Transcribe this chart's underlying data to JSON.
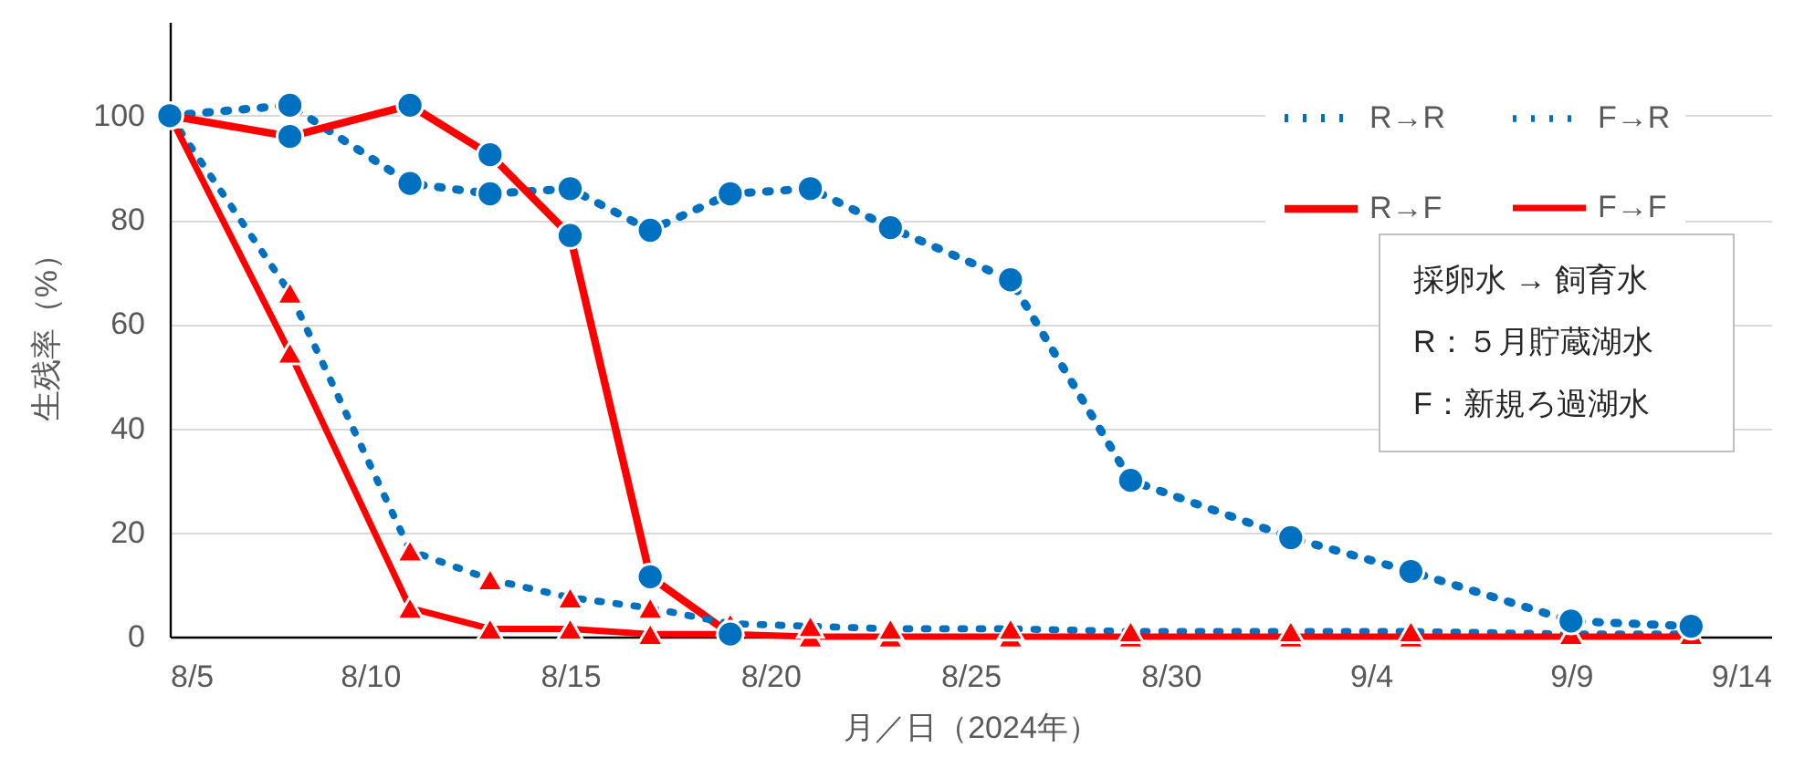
{
  "chart_data": {
    "type": "line",
    "xlabel": "月／日（2024年）",
    "ylabel": "生残率（%）",
    "xlim": [
      "2024-08-05",
      "2024-09-14"
    ],
    "xticks": [
      {
        "value": "2024-08-05",
        "label": "8/5"
      },
      {
        "value": "2024-08-10",
        "label": "8/10"
      },
      {
        "value": "2024-08-15",
        "label": "8/15"
      },
      {
        "value": "2024-08-20",
        "label": "8/20"
      },
      {
        "value": "2024-08-25",
        "label": "8/25"
      },
      {
        "value": "2024-08-30",
        "label": "8/30"
      },
      {
        "value": "2024-09-04",
        "label": "9/4"
      },
      {
        "value": "2024-09-09",
        "label": "9/9"
      },
      {
        "value": "2024-09-14",
        "label": "9/14"
      }
    ],
    "ylim": [
      0,
      118
    ],
    "yticks": [
      0,
      20,
      40,
      60,
      80,
      100
    ],
    "grid": "y",
    "legend": "top right",
    "annotations": [
      "採卵水 → 飼育水",
      "R：５月貯蔵湖水",
      "F：新規ろ過湖水"
    ],
    "x": [
      "2024-08-05",
      "2024-08-08",
      "2024-08-11",
      "2024-08-13",
      "2024-08-15",
      "2024-08-17",
      "2024-08-19",
      "2024-08-21",
      "2024-08-23",
      "2024-08-26",
      "2024-08-29",
      "2024-09-02",
      "2024-09-05",
      "2024-09-09",
      "2024-09-12"
    ],
    "series": [
      {
        "name": "R→R",
        "color": "#0070c0",
        "marker": "circle",
        "line_style": "dotted",
        "values": [
          100,
          102,
          87,
          85,
          86,
          78,
          85,
          86,
          78.5,
          68.5,
          30,
          19,
          12.5,
          3,
          2
        ],
        "colors": [
          "#0070c0",
          "#0070c0",
          "#0070c0",
          "#0070c0",
          "#0070c0",
          "#0070c0",
          "#0070c0",
          "#0070c0",
          "#0070c0",
          "#0070c0",
          "#0070c0",
          "#0070c0",
          "#0070c0",
          "#0070c0",
          "#0070c0"
        ]
      },
      {
        "name": "R→F",
        "color": "#ff0000",
        "marker": "circle",
        "line_style": "solid",
        "x": [
          "2024-08-05",
          "2024-08-08",
          "2024-08-11",
          "2024-08-13",
          "2024-08-15",
          "2024-08-17",
          "2024-08-19"
        ],
        "values": [
          100,
          96,
          102,
          92.5,
          77,
          11.5,
          0.5
        ],
        "colors": [
          "#0070c0",
          "#0070c0",
          "#0070c0",
          "#0070c0",
          "#0070c0",
          "#0070c0",
          "#0070c0"
        ]
      },
      {
        "name": "F→R",
        "color": "#0070c0",
        "marker": "triangle",
        "line_style": "dotted",
        "values": [
          100,
          66,
          16.5,
          11,
          7.5,
          5.5,
          2.5,
          2,
          1.5,
          1.5,
          1,
          1,
          1,
          0.5,
          0.5
        ],
        "colors": [
          "#ff0000",
          "#ff0000",
          "#ff0000",
          "#ff0000",
          "#ff0000",
          "#ff0000",
          "#ff0000",
          "#ff0000",
          "#ff0000",
          "#ff0000",
          "#ff0000",
          "#ff0000",
          "#ff0000",
          "#ff0000",
          "#ff0000"
        ]
      },
      {
        "name": "F→F",
        "color": "#ff0000",
        "marker": "triangle",
        "line_style": "solid",
        "values": [
          100,
          54.5,
          5.5,
          1.5,
          1.5,
          0.5,
          0.5,
          0,
          0,
          0,
          0,
          0,
          0,
          0,
          0
        ],
        "colors": [
          "#ff0000",
          "#ff0000",
          "#ff0000",
          "#ff0000",
          "#ff0000",
          "#ff0000",
          "#ff0000",
          "#ff0000",
          "#ff0000",
          "#ff0000",
          "#ff0000",
          "#ff0000",
          "#ff0000",
          "#ff0000",
          "#ff0000"
        ]
      }
    ]
  }
}
